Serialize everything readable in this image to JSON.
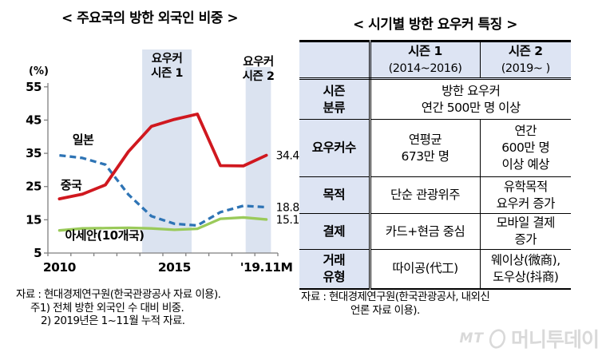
{
  "chart_data": {
    "type": "line",
    "title": "< 주요국의 방한 외국인 비중 >",
    "unit": "(%)",
    "ylabel": "(%)",
    "ylim": [
      5,
      55
    ],
    "yticks": [
      5,
      15,
      25,
      35,
      45,
      55
    ],
    "x_years": [
      2010,
      2011,
      2012,
      2013,
      2014,
      2015,
      2016,
      2017,
      2018,
      2019
    ],
    "xtick_labels": {
      "0": "2010",
      "5": "2015",
      "9": "'19.11M"
    },
    "series": [
      {
        "name": "중국",
        "color": "#d0181f",
        "dashed": false,
        "width": 3.8,
        "values": [
          21.3,
          22.7,
          25.5,
          35.5,
          43.1,
          45.2,
          46.8,
          31.3,
          31.2,
          34.4
        ],
        "end_label": "34.4"
      },
      {
        "name": "일본",
        "color": "#2e74b5",
        "dashed": true,
        "width": 3.3,
        "values": [
          34.4,
          33.6,
          31.6,
          22.6,
          16.1,
          13.8,
          13.3,
          17.3,
          19.2,
          18.8
        ],
        "end_label": "18.8"
      },
      {
        "name": "아세안(10개국)",
        "color": "#9aca5a",
        "dashed": false,
        "width": 3.3,
        "values": [
          11.8,
          12.4,
          12.5,
          12.6,
          12.4,
          12.0,
          12.3,
          15.3,
          15.7,
          15.1
        ],
        "end_label": "15.1"
      }
    ],
    "bands": [
      {
        "label_line1": "요우커",
        "label_line2": "시즌 1",
        "from_year": 2013.6,
        "to_year": 2015.75
      },
      {
        "label_line1": "요우커",
        "label_line2": "시즌 2",
        "from_year": 2018.1,
        "to_year": 2019.2
      }
    ],
    "band_color": "#dbe3f0",
    "axis_color": "#7f7f7f",
    "legend_position": "inline"
  },
  "left_footnotes": [
    "자료 : 현대경제연구원(한국관광공사 자료 이용).",
    "주1) 전체 방한 외국인 수 대비 비중.",
    "2) 2019년은 1~11월 누적 자료."
  ],
  "right_table": {
    "title": "< 시기별 방한 요우커 특징 >",
    "header": {
      "corner": "",
      "s1_line1": "시즌 1",
      "s1_line2": "(2014~2016)",
      "s2_line1": "시즌 2",
      "s2_line2": "(2019~ )"
    },
    "rows": [
      {
        "label": "시즌\n분류",
        "span": "방한 요우커\n연간 500만 명 이상"
      },
      {
        "label": "요우커수",
        "s1": "연평균\n673만 명",
        "s2": "연간\n600만 명\n이상 예상"
      },
      {
        "label": "목적",
        "s1": "단순 관광위주",
        "s2": "유학목적\n요우커 증가"
      },
      {
        "label": "결제",
        "s1": "카드+현금 중심",
        "s2": "모바일 결제\n증가"
      },
      {
        "label": "거래\n유형",
        "s1": "따이공(代工)",
        "s2": "웨이상(微商),\n도우상(抖商)"
      }
    ],
    "header_bg": "#dde4f3"
  },
  "right_footnote": [
    "자료 : 현대경제연구원(한국관광공사,  내외신",
    "언론 자료 이용)."
  ],
  "watermark": {
    "mt": "MT",
    "name": "머니투데이"
  }
}
